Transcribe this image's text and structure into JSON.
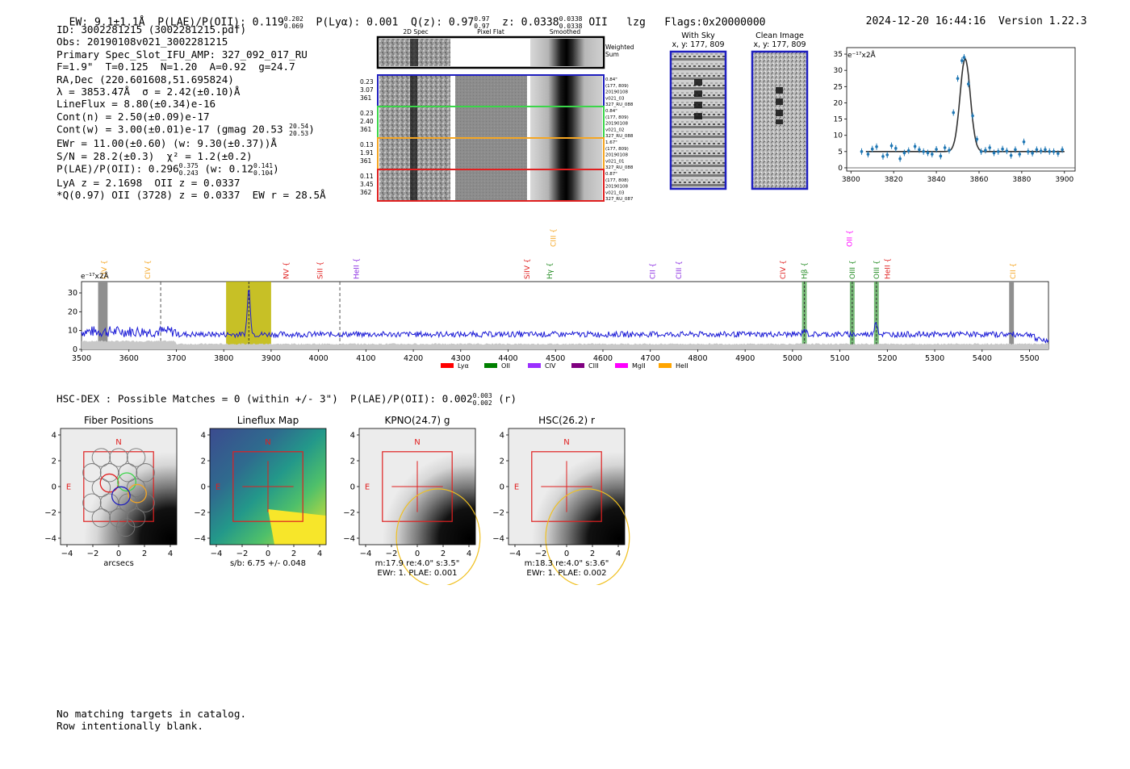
{
  "header": {
    "ew": "EW: 9.1±1.1Å",
    "plae_label": "P(LAE)/P(OII): 0.119",
    "plae_hi": "0.202",
    "plae_lo": "0.069",
    "plya": "P(Lyα): 0.001",
    "qz_label": "Q(z): 0.97",
    "qz_hi": "0.97",
    "qz_lo": "0.97",
    "z_label": "z: 0.0338",
    "z_hi": "0.0338",
    "z_lo": "0.0338",
    "line": "OII",
    "lzg": "lzg",
    "flags": "Flags:0x20000000",
    "timestamp": "2024-12-20 16:44:16",
    "version": "Version 1.22.3"
  },
  "info": {
    "id": "ID: 3002281215 (3002281215.pdf)",
    "obs": "Obs: 20190108v021_3002281215",
    "primary": "Primary Spec_Slot_IFU_AMP: 327_092_017_RU",
    "fwhm": "F=1.9\"  T=0.125  N=1.20  A=0.92  g=24.7",
    "radec": "RA,Dec (220.601608,51.695824)",
    "lambda": "λ = 3853.47Å  σ = 2.42(±0.10)Å",
    "lineflux": "LineFlux = 8.80(±0.34)e-16",
    "contn": "Cont(n) = 2.50(±0.09)e-17",
    "contw": "Cont(w) = 3.00(±0.01)e-17 (gmag 20.53",
    "contw_hi": "20.54",
    "contw_lo": "20.53",
    "contw_close": ")",
    "ewr": "EWr = 11.00(±0.60) (w: 9.30(±0.37))Å",
    "sn": "S/N = 28.2(±0.3)  χ² = 1.2(±0.2)",
    "plae2": "P(LAE)/P(OII): 0.296",
    "plae2_hi": "0.375",
    "plae2_lo": "0.243",
    "plae2_w": "(w: 0.12",
    "plae2_w_hi": "0.141",
    "plae2_w_lo": "0.104",
    "plae2_close": ")",
    "lya": "LyA z = 2.1698  OII z = 0.0337",
    "qline": "*Q(0.97) OII (3728) z = 0.0337  EW r = 28.5Å"
  },
  "cutouts": {
    "headers": [
      "2D Spec",
      "Pixel Flat",
      "Smoothed"
    ],
    "weighted_sum": [
      "Weighted",
      "Sum"
    ],
    "rows": [
      {
        "left": [
          "0.23",
          "3.07",
          "361"
        ],
        "right": [
          "0.84\"",
          "(177, 809)",
          "20190108",
          "v021_03",
          "327_RU_088"
        ],
        "color": "#1f1fbf"
      },
      {
        "left": [
          "0.23",
          "2.40",
          "361"
        ],
        "right": [
          "0.84\"",
          "(177, 809)",
          "20190108",
          "v021_02",
          "327_RU_088"
        ],
        "color": "#3bd64a"
      },
      {
        "left": [
          "0.13",
          "1.91",
          "361"
        ],
        "right": [
          "1.67\"",
          "(177, 809)",
          "20190108",
          "v021_01",
          "327_RU_088"
        ],
        "color": "#f5a623"
      },
      {
        "left": [
          "0.11",
          "3.45",
          "362"
        ],
        "right": [
          "0.87\"",
          "(177, 808)",
          "20190108",
          "v021_03",
          "327_RU_087"
        ],
        "color": "#e02020"
      }
    ]
  },
  "sky_panels": {
    "with_sky": [
      "With Sky",
      "x, y: 177, 809"
    ],
    "clean": [
      "Clean Image",
      "x, y: 177, 809"
    ]
  },
  "zoom_plot": {
    "ylabel": "e⁻¹⁷x2Å",
    "yticks": [
      "0",
      "5",
      "10",
      "15",
      "20",
      "25",
      "30",
      "35"
    ],
    "xticks": [
      "3800",
      "3820",
      "3840",
      "3860",
      "3880",
      "3900"
    ]
  },
  "chart_data": {
    "type": "line",
    "title": "",
    "xlabel": "",
    "ylabel": "e⁻¹⁷x2Å",
    "xlim": [
      3500,
      5540
    ],
    "ylim": [
      0,
      36
    ],
    "xticks": [
      3500,
      3600,
      3700,
      3800,
      3900,
      4000,
      4100,
      4200,
      4300,
      4400,
      4500,
      4600,
      4700,
      4800,
      4900,
      5000,
      5100,
      5200,
      5300,
      5400,
      5500
    ],
    "yticks": [
      0,
      10,
      20,
      30
    ],
    "continuum_level": 9,
    "peaks": [
      {
        "x": 3853,
        "y": 33
      },
      {
        "x": 5025,
        "y": 12
      },
      {
        "x": 5127,
        "y": 9
      },
      {
        "x": 5176,
        "y": 16
      }
    ],
    "zoom_points": [
      {
        "x": 3805,
        "y": 5.0
      },
      {
        "x": 3808,
        "y": 4.2
      },
      {
        "x": 3810,
        "y": 5.8
      },
      {
        "x": 3812,
        "y": 6.5
      },
      {
        "x": 3815,
        "y": 3.5
      },
      {
        "x": 3817,
        "y": 4.0
      },
      {
        "x": 3819,
        "y": 6.8
      },
      {
        "x": 3821,
        "y": 6.0
      },
      {
        "x": 3823,
        "y": 2.8
      },
      {
        "x": 3825,
        "y": 4.6
      },
      {
        "x": 3827,
        "y": 5.3
      },
      {
        "x": 3830,
        "y": 6.6
      },
      {
        "x": 3832,
        "y": 5.6
      },
      {
        "x": 3834,
        "y": 5.0
      },
      {
        "x": 3836,
        "y": 4.6
      },
      {
        "x": 3838,
        "y": 4.2
      },
      {
        "x": 3840,
        "y": 5.7
      },
      {
        "x": 3842,
        "y": 3.6
      },
      {
        "x": 3844,
        "y": 6.2
      },
      {
        "x": 3846,
        "y": 5.4
      },
      {
        "x": 3848,
        "y": 17.0
      },
      {
        "x": 3850,
        "y": 27.5
      },
      {
        "x": 3852,
        "y": 33.0
      },
      {
        "x": 3853,
        "y": 34.0
      },
      {
        "x": 3855,
        "y": 25.8
      },
      {
        "x": 3857,
        "y": 16.0
      },
      {
        "x": 3859,
        "y": 8.8
      },
      {
        "x": 3861,
        "y": 5.0
      },
      {
        "x": 3863,
        "y": 5.4
      },
      {
        "x": 3865,
        "y": 6.2
      },
      {
        "x": 3867,
        "y": 4.6
      },
      {
        "x": 3869,
        "y": 5.0
      },
      {
        "x": 3871,
        "y": 5.8
      },
      {
        "x": 3873,
        "y": 5.2
      },
      {
        "x": 3875,
        "y": 3.8
      },
      {
        "x": 3877,
        "y": 5.6
      },
      {
        "x": 3879,
        "y": 4.2
      },
      {
        "x": 3881,
        "y": 8.0
      },
      {
        "x": 3883,
        "y": 5.0
      },
      {
        "x": 3885,
        "y": 4.5
      },
      {
        "x": 3887,
        "y": 5.6
      },
      {
        "x": 3889,
        "y": 5.2
      },
      {
        "x": 3891,
        "y": 5.6
      },
      {
        "x": 3893,
        "y": 5.0
      },
      {
        "x": 3895,
        "y": 5.0
      },
      {
        "x": 3897,
        "y": 4.4
      },
      {
        "x": 3899,
        "y": 5.6
      }
    ],
    "zoom_xlim": [
      3798,
      3905
    ],
    "zoom_ylim": [
      -1,
      37
    ],
    "lines": [
      {
        "label": "CIV",
        "x": 3548,
        "color": "#f5a623",
        "row": 2
      },
      {
        "label": "CIV",
        "x": 3640,
        "color": "#f5a623",
        "row": 1
      },
      {
        "label": "NV",
        "x": 3932,
        "color": "#e02020",
        "row": 1
      },
      {
        "label": "SiII",
        "x": 4003,
        "color": "#e02020",
        "row": 1
      },
      {
        "label": "HeII",
        "x": 4080,
        "color": "#8a2be2",
        "row": 1
      },
      {
        "label": "SiIV",
        "x": 4440,
        "color": "#e02020",
        "row": 1
      },
      {
        "label": "CIII",
        "x": 4495,
        "color": "#f5a623",
        "row": 0
      },
      {
        "label": "Hγ",
        "x": 4488,
        "color": "#228b22",
        "row": 1
      },
      {
        "label": "CII",
        "x": 4705,
        "color": "#8a2be2",
        "row": 1
      },
      {
        "label": "CIII",
        "x": 4760,
        "color": "#8a2be2",
        "row": 1
      },
      {
        "label": "CIV",
        "x": 4980,
        "color": "#e02020",
        "row": 1
      },
      {
        "label": "Hβ",
        "x": 5025,
        "color": "#228b22",
        "row": 1
      },
      {
        "label": "OII",
        "x": 5120,
        "color": "#ff00ff",
        "row": 0
      },
      {
        "label": "OIII",
        "x": 5126,
        "color": "#228b22",
        "row": 1
      },
      {
        "label": "OIII",
        "x": 5177,
        "color": "#228b22",
        "row": 1
      },
      {
        "label": "HeII",
        "x": 5200,
        "color": "#e02020",
        "row": 1
      },
      {
        "label": "CII",
        "x": 5465,
        "color": "#f5a623",
        "row": 1
      }
    ],
    "legend": [
      {
        "label": "Lyα",
        "color": "#ff0000"
      },
      {
        "label": "OII",
        "color": "#008000"
      },
      {
        "label": "CIV",
        "color": "#9b30ff"
      },
      {
        "label": "CIII",
        "color": "#800080"
      },
      {
        "label": "MgII",
        "color": "#ff00ff"
      },
      {
        "label": "HeII",
        "color": "#ffa500"
      }
    ]
  },
  "hsc": {
    "title_line": "HSC-DEX : Possible Matches = 0 (within +/- 3\")  P(LAE)/P(OII): 0.002",
    "title_hi": "0.003",
    "title_lo": "0.002",
    "title_tail": "(r)",
    "panels": [
      {
        "title": "Fiber Positions",
        "caption1": "arcsecs",
        "caption2": "",
        "caption3": ""
      },
      {
        "title": "Lineflux Map",
        "caption1": "s/b: 6.75 +/- 0.048",
        "caption2": "",
        "caption3": ""
      },
      {
        "title": "KPNO(24.7) g",
        "caption1": "m:17.9  re:4.0\"  s:3.5\"",
        "caption2": "EWr: 1. PLAE: 0.001",
        "caption3": ""
      },
      {
        "title": "HSC(26.2) r",
        "caption1": "m:18.3  re:4.0\"  s:3.6\"",
        "caption2": "EWr: 1. PLAE: 0.002",
        "caption3": ""
      }
    ],
    "yticks": [
      "4",
      "2",
      "0",
      "−2",
      "−4"
    ],
    "xticks": [
      "−4",
      "−2",
      "0",
      "2",
      "4"
    ],
    "compass_n": "N",
    "compass_e": "E"
  },
  "footer": {
    "line1": "No matching targets in catalog.",
    "line2": "Row intentionally blank."
  }
}
